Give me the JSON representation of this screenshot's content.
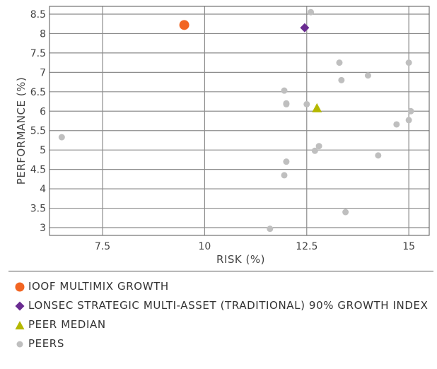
{
  "chart_data": {
    "type": "scatter",
    "xlabel": "RISK (%)",
    "ylabel": "PERFORMANCE (%)",
    "xlim": [
      6.2,
      15.5
    ],
    "ylim": [
      2.8,
      8.7
    ],
    "xticks": [
      7.5,
      10,
      12.5,
      15
    ],
    "xtick_labels": [
      "7.5",
      "10",
      "12.5",
      "15"
    ],
    "yticks": [
      3,
      3.5,
      4,
      4.5,
      5,
      5.5,
      6,
      6.5,
      7,
      7.5,
      8,
      8.5
    ],
    "ytick_labels": [
      "3",
      "3.5",
      "4",
      "4.5",
      "5",
      "5.5",
      "6",
      "6.5",
      "7",
      "7.5",
      "8",
      "8.5"
    ],
    "grid": true,
    "legend_position": "bottom",
    "series": [
      {
        "name": "IOOF MULTIMIX GROWTH",
        "marker": "circle",
        "color": "#f26522",
        "points": [
          {
            "x": 9.5,
            "y": 8.22
          }
        ]
      },
      {
        "name": "LONSEC STRATEGIC MULTI-ASSET (TRADITIONAL) 90% GROWTH INDEX",
        "marker": "diamond",
        "color": "#6a2c91",
        "points": [
          {
            "x": 12.45,
            "y": 8.15
          }
        ]
      },
      {
        "name": "PEER MEDIAN",
        "marker": "triangle",
        "color": "#b5b800",
        "points": [
          {
            "x": 12.75,
            "y": 6.08
          }
        ]
      },
      {
        "name": "PEERS",
        "marker": "circle",
        "color": "#bfbfbf",
        "points": [
          {
            "x": 6.5,
            "y": 5.33
          },
          {
            "x": 11.6,
            "y": 2.97
          },
          {
            "x": 11.95,
            "y": 4.35
          },
          {
            "x": 12.0,
            "y": 4.7
          },
          {
            "x": 11.95,
            "y": 6.53
          },
          {
            "x": 12.0,
            "y": 6.2
          },
          {
            "x": 12.0,
            "y": 6.18
          },
          {
            "x": 12.5,
            "y": 6.18
          },
          {
            "x": 12.6,
            "y": 8.55
          },
          {
            "x": 12.7,
            "y": 4.98
          },
          {
            "x": 12.8,
            "y": 5.1
          },
          {
            "x": 13.3,
            "y": 7.25
          },
          {
            "x": 13.35,
            "y": 6.8
          },
          {
            "x": 13.45,
            "y": 3.4
          },
          {
            "x": 14.0,
            "y": 6.92
          },
          {
            "x": 14.25,
            "y": 4.86
          },
          {
            "x": 14.7,
            "y": 5.66
          },
          {
            "x": 15.0,
            "y": 7.25
          },
          {
            "x": 15.0,
            "y": 5.77
          },
          {
            "x": 15.05,
            "y": 6.0
          }
        ]
      }
    ]
  }
}
